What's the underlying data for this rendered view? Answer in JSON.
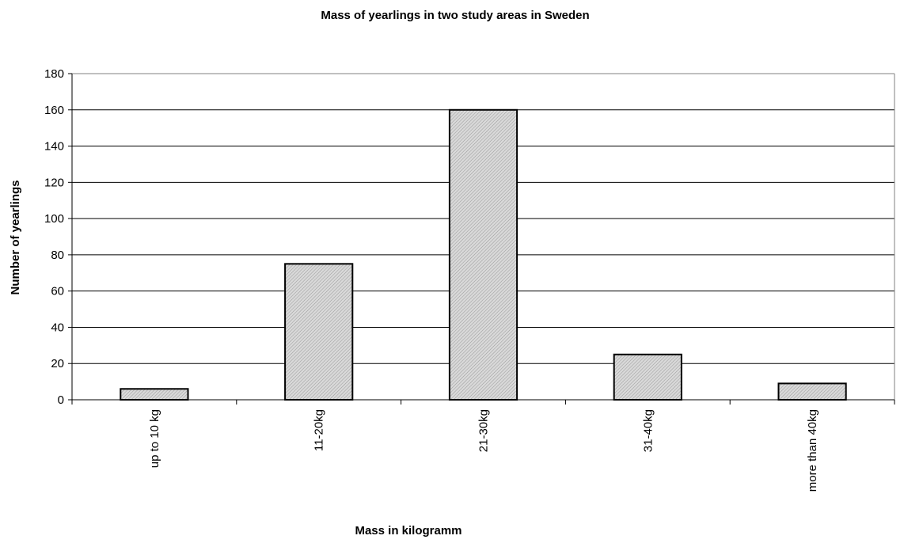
{
  "chart_data": {
    "type": "bar",
    "title": "Mass of yearlings in two study areas in Sweden",
    "xlabel": "Mass in kilogramm",
    "ylabel": "Number of yearlings",
    "categories": [
      "up to 10 kg",
      "11-20kg",
      "21-30kg",
      "31-40kg",
      "more than 40kg"
    ],
    "values": [
      6,
      75,
      160,
      25,
      9
    ],
    "ylim": [
      0,
      180
    ],
    "yticks": [
      "0",
      "20",
      "40",
      "60",
      "80",
      "100",
      "120",
      "140",
      "160",
      "180"
    ],
    "grid": true,
    "legend": "none",
    "colors": {
      "bar_fill": "#c8c8c8",
      "bar_stroke": "#000000",
      "grid": "#000000",
      "background": "#ffffff"
    }
  }
}
